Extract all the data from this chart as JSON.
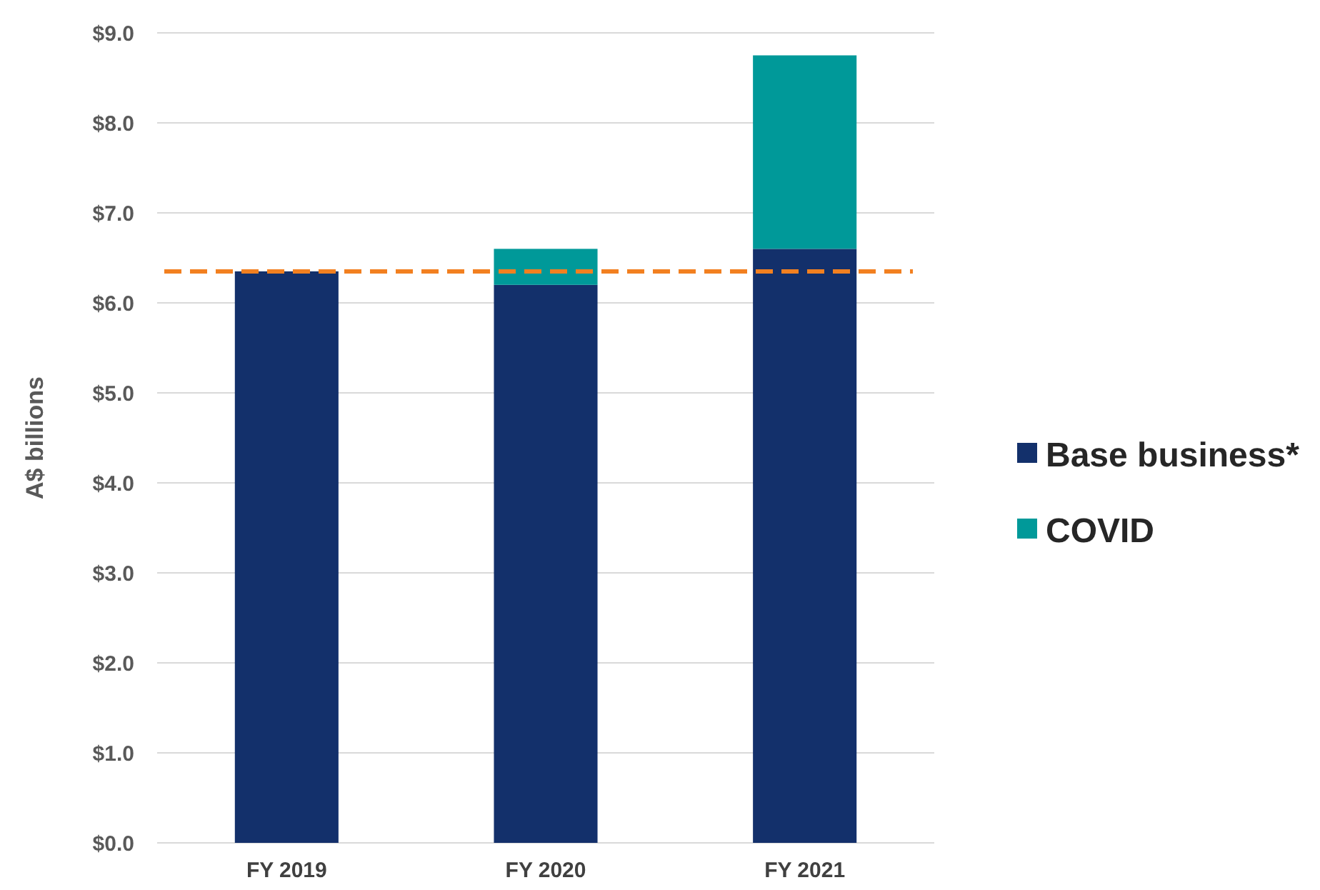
{
  "chart_data": {
    "type": "bar",
    "stacked": true,
    "ylabel": "A$ billions",
    "categories": [
      "FY 2019",
      "FY 2020",
      "FY 2021"
    ],
    "series": [
      {
        "name": "Base business*",
        "color": "#13306b",
        "values": [
          6.35,
          6.2,
          6.6
        ]
      },
      {
        "name": "COVID",
        "color": "#009999",
        "values": [
          null,
          0.4,
          2.15
        ]
      }
    ],
    "ylim": [
      0,
      9
    ],
    "yticks": [
      {
        "value": 0,
        "label": "$0.0"
      },
      {
        "value": 1,
        "label": "$1.0"
      },
      {
        "value": 2,
        "label": "$2.0"
      },
      {
        "value": 3,
        "label": "$3.0"
      },
      {
        "value": 4,
        "label": "$4.0"
      },
      {
        "value": 5,
        "label": "$5.0"
      },
      {
        "value": 6,
        "label": "$6.0"
      },
      {
        "value": 7,
        "label": "$7.0"
      },
      {
        "value": 8,
        "label": "$8.0"
      },
      {
        "value": 9,
        "label": "$9.0"
      }
    ],
    "grid": "y",
    "legend": "right",
    "ref_lines": [
      {
        "axis": "y",
        "value": 6.35,
        "color": "#f28020",
        "line_style": "dashed"
      }
    ]
  }
}
